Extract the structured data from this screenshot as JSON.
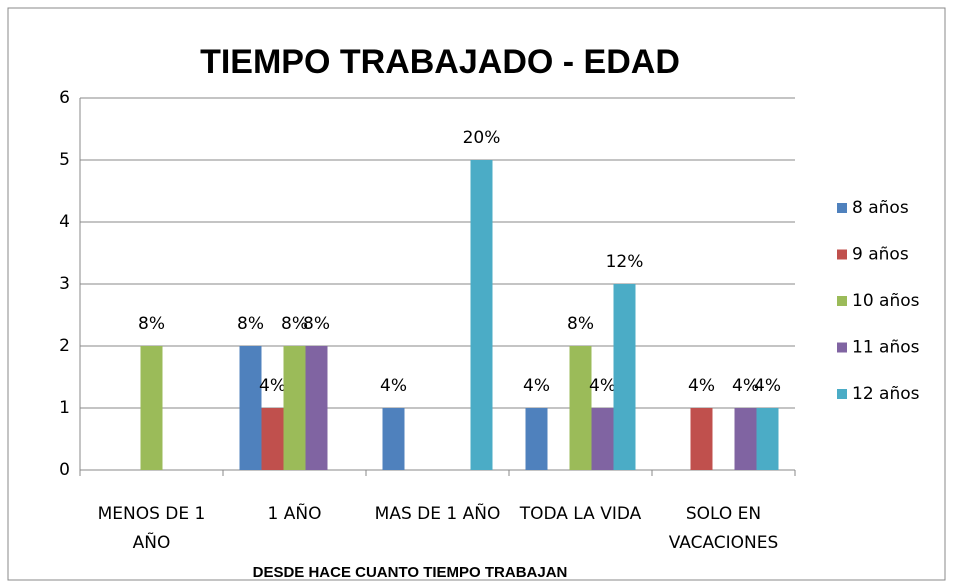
{
  "chart_data": {
    "type": "bar",
    "title": "TIEMPO TRABAJADO - EDAD",
    "x_label": "DESDE HACE CUANTO TIEMPO TRABAJAN",
    "categories": [
      "MENOS DE 1 AÑO",
      "1 AÑO",
      "MAS DE 1 AÑO",
      "TODA LA VIDA",
      "SOLO EN VACACIONES"
    ],
    "series": [
      {
        "name": "8 años",
        "color": "#4f81bd",
        "values": [
          null,
          2,
          1,
          1,
          null
        ],
        "value_labels": [
          null,
          "8%",
          "4%",
          "4%",
          null
        ]
      },
      {
        "name": "9 años",
        "color": "#c0504d",
        "values": [
          null,
          1,
          null,
          null,
          1
        ],
        "value_labels": [
          null,
          "4%",
          null,
          null,
          "4%"
        ]
      },
      {
        "name": "10 años",
        "color": "#9bbb59",
        "values": [
          2,
          2,
          null,
          2,
          null
        ],
        "value_labels": [
          "8%",
          "8%",
          null,
          "8%",
          null
        ]
      },
      {
        "name": "11 años",
        "color": "#8064a2",
        "values": [
          null,
          2,
          null,
          1,
          1
        ],
        "value_labels": [
          null,
          "8%",
          null,
          "4%",
          "4%"
        ]
      },
      {
        "name": "12 años",
        "color": "#4bacc6",
        "values": [
          null,
          null,
          5,
          3,
          1
        ],
        "value_labels": [
          null,
          null,
          "20%",
          "12%",
          "4%"
        ]
      }
    ],
    "ylim": [
      0,
      6
    ],
    "yticks": [
      0,
      1,
      2,
      3,
      4,
      5,
      6
    ],
    "grid": true,
    "legend": "right"
  }
}
